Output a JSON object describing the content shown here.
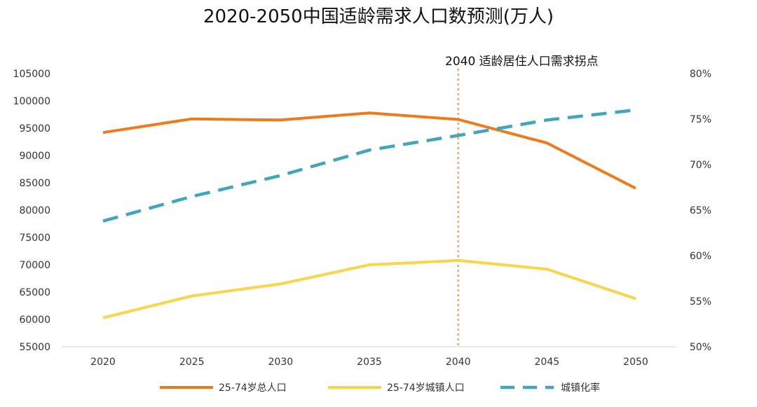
{
  "chart_data": {
    "type": "line",
    "title": "2020-2050中国适龄需求人口数预测(万人)",
    "x": [
      "2020",
      "2025",
      "2030",
      "2035",
      "2040",
      "2045",
      "2050"
    ],
    "y_left": {
      "ticks": [
        "105000",
        "100000",
        "95000",
        "90000",
        "85000",
        "80000",
        "75000",
        "70000",
        "65000",
        "60000",
        "55000"
      ],
      "ylim": [
        55000,
        105000
      ]
    },
    "y_right": {
      "ticks": [
        "80%",
        "75%",
        "70%",
        "65%",
        "60%",
        "55%",
        "50%"
      ],
      "ylim": [
        50,
        80
      ]
    },
    "series": [
      {
        "name": "25-74岁总人口",
        "axis": "left",
        "color": "#F07A1A",
        "dash": false,
        "values": [
          94200,
          96700,
          96500,
          97800,
          96600,
          92300,
          84000
        ]
      },
      {
        "name": "25-74岁城镇人口",
        "axis": "left",
        "color": "#FAD54A",
        "dash": false,
        "values": [
          60300,
          64300,
          66500,
          70000,
          70800,
          69200,
          63800
        ]
      },
      {
        "name": "城镇化率",
        "axis": "right",
        "color": "#3FA6BD",
        "dash": true,
        "values": [
          63.8,
          66.5,
          68.8,
          71.6,
          73.2,
          74.9,
          76.0
        ]
      }
    ],
    "annotation": {
      "x": "2040",
      "label": "2040 适龄居住人口需求拐点",
      "color": "#F5A46A"
    },
    "legend": "bottom"
  }
}
